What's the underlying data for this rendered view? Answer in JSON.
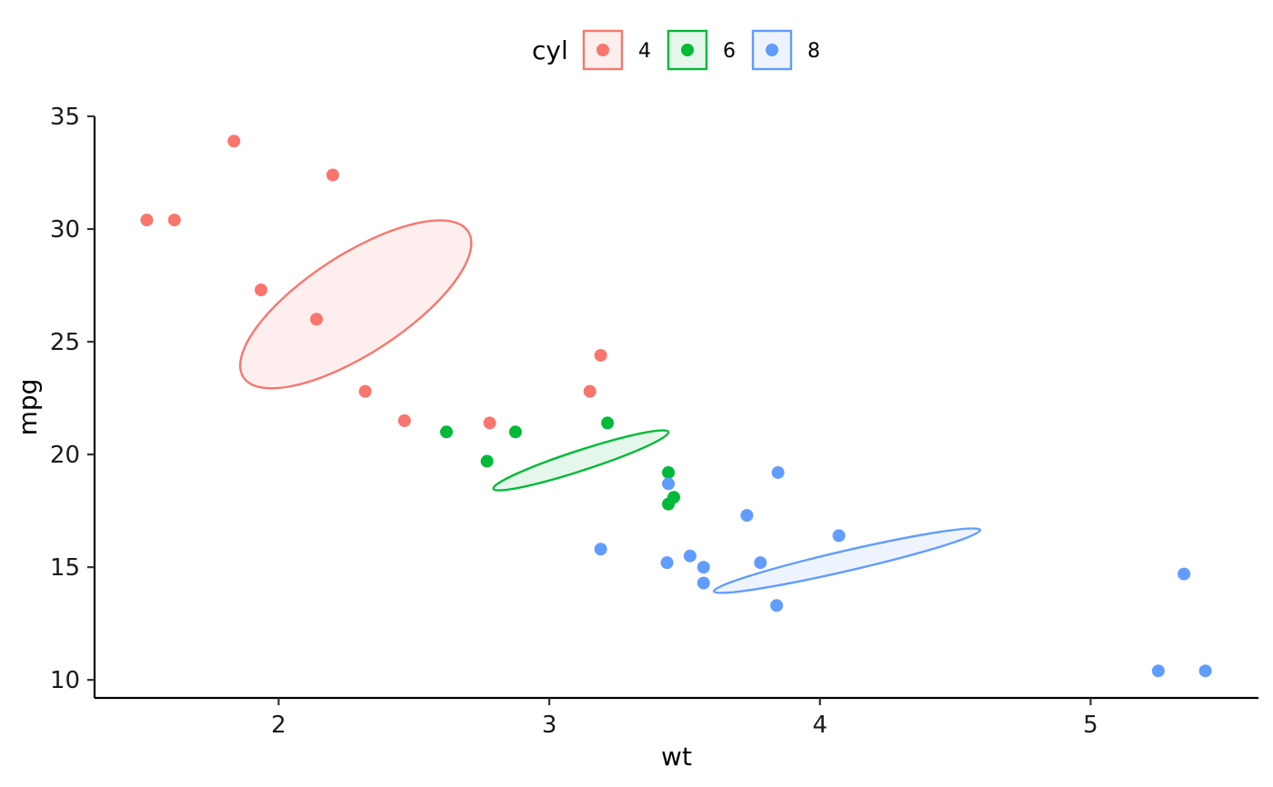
{
  "chart_data": {
    "type": "scatter",
    "xlabel": "wt",
    "ylabel": "mpg",
    "xlim": [
      1.32,
      5.62
    ],
    "ylim": [
      9.2,
      35.0
    ],
    "x_ticks": [
      2,
      3,
      4,
      5
    ],
    "y_ticks": [
      10,
      15,
      20,
      25,
      30,
      35
    ],
    "grid": false,
    "legend": {
      "title": "cyl",
      "position": "top"
    },
    "series": [
      {
        "name": "4",
        "color": "#F8766D",
        "fill": "#FEEFEE",
        "points": [
          [
            1.513,
            30.4
          ],
          [
            1.615,
            30.4
          ],
          [
            1.835,
            33.9
          ],
          [
            2.2,
            32.4
          ],
          [
            1.935,
            27.3
          ],
          [
            2.14,
            26.0
          ],
          [
            2.32,
            22.8
          ],
          [
            2.465,
            21.5
          ],
          [
            2.78,
            21.4
          ],
          [
            3.15,
            22.8
          ],
          [
            3.19,
            24.4
          ]
        ],
        "ellipse": {
          "cx": 2.285,
          "cy": 26.66,
          "rx": 0.495,
          "ry": 2.2,
          "angle_deg": -33
        }
      },
      {
        "name": "6",
        "color": "#00BA38",
        "fill": "#E5F7EA",
        "points": [
          [
            2.62,
            21.0
          ],
          [
            2.875,
            21.0
          ],
          [
            2.77,
            19.7
          ],
          [
            3.215,
            21.4
          ],
          [
            3.44,
            19.2
          ],
          [
            3.46,
            18.1
          ],
          [
            3.44,
            17.8
          ]
        ],
        "ellipse": {
          "cx": 3.117,
          "cy": 19.74,
          "rx": 0.34,
          "ry": 0.45,
          "angle_deg": -18
        }
      },
      {
        "name": "8",
        "color": "#619CFF",
        "fill": "#EEF4FF",
        "points": [
          [
            3.44,
            18.7
          ],
          [
            3.57,
            14.3
          ],
          [
            3.19,
            15.8
          ],
          [
            4.07,
            16.4
          ],
          [
            3.73,
            17.3
          ],
          [
            3.78,
            15.2
          ],
          [
            5.25,
            10.4
          ],
          [
            5.424,
            10.4
          ],
          [
            5.345,
            14.7
          ],
          [
            3.52,
            15.5
          ],
          [
            3.435,
            15.2
          ],
          [
            3.84,
            13.3
          ],
          [
            3.845,
            19.2
          ],
          [
            3.57,
            15.0
          ]
        ],
        "ellipse": {
          "cx": 4.1,
          "cy": 15.29,
          "rx": 0.505,
          "ry": 0.45,
          "angle_deg": -13
        }
      }
    ]
  }
}
